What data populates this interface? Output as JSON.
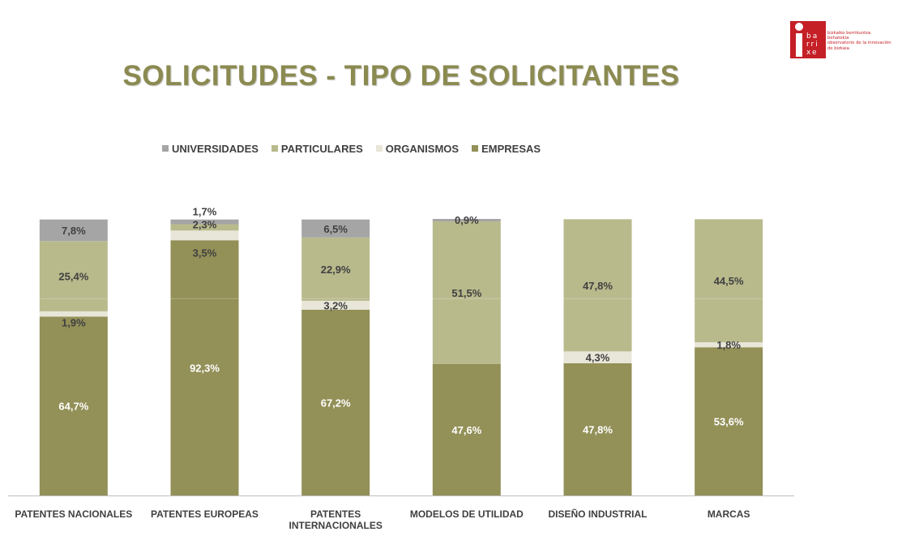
{
  "title": "SOLICITUDES - TIPO DE SOLICITANTES",
  "logo": {
    "word_lines": [
      "ba",
      "rri",
      "xe"
    ],
    "text_lines": [
      "bizkaiko berrikuntza",
      "behatokia",
      "observatorio de la innovación",
      "de bizkaia"
    ],
    "color": "#c42026"
  },
  "legend": [
    {
      "name": "UNIVERSIDADES",
      "color": "#a5a5a5"
    },
    {
      "name": "PARTICULARES",
      "color": "#b8ba8c"
    },
    {
      "name": "ORGANISMOS",
      "color": "#e8e6d8"
    },
    {
      "name": "EMPRESAS",
      "color": "#939058"
    }
  ],
  "chart_data": {
    "type": "bar",
    "stacked": true,
    "title": "SOLICITUDES - TIPO DE SOLICITANTES",
    "xlabel": "",
    "ylabel": "",
    "ylim": [
      0,
      100
    ],
    "legend_position": "top",
    "categories": [
      "PATENTES NACIONALES",
      "PATENTES EUROPEAS",
      "PATENTES INTERNACIONALES",
      "MODELOS DE UTILIDAD",
      "DISEÑO INDUSTRIAL",
      "MARCAS"
    ],
    "series": [
      {
        "name": "EMPRESAS",
        "color": "#939058",
        "values": [
          64.7,
          92.3,
          67.2,
          47.6,
          47.8,
          53.6
        ],
        "labels": [
          "64,7%",
          "92,3%",
          "67,2%",
          "47,6%",
          "47,8%",
          "53,6%"
        ]
      },
      {
        "name": "ORGANISMOS",
        "color": "#e8e6d8",
        "values": [
          1.9,
          3.5,
          3.2,
          0,
          4.3,
          1.8
        ],
        "labels": [
          "1,9%",
          "3,5%",
          "3,2%",
          "",
          "4,3%",
          "1,8%"
        ]
      },
      {
        "name": "PARTICULARES",
        "color": "#b8ba8c",
        "values": [
          25.4,
          2.3,
          22.9,
          51.5,
          47.8,
          44.5
        ],
        "labels": [
          "25,4%",
          "2,3%",
          "22,9%",
          "51,5%",
          "47,8%",
          "44,5%"
        ]
      },
      {
        "name": "UNIVERSIDADES",
        "color": "#a5a5a5",
        "values": [
          7.8,
          1.7,
          6.5,
          0.9,
          0,
          0
        ],
        "labels": [
          "7,8%",
          "1,7%",
          "6,5%",
          "0,9%",
          "",
          ""
        ]
      }
    ]
  }
}
